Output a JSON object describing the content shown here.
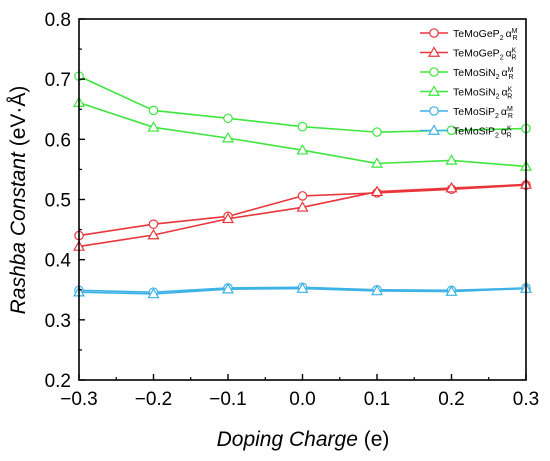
{
  "chart_data": {
    "type": "line",
    "xlabel_italic": "Doping Charge",
    "xlabel_unit": " (e)",
    "ylabel_italic": "Rashba Constant",
    "ylabel_unit": " (eV·Å)",
    "xlim": [
      -0.3,
      0.3
    ],
    "ylim": [
      0.2,
      0.8
    ],
    "x": [
      -0.3,
      -0.2,
      -0.1,
      0.0,
      0.1,
      0.2,
      0.3
    ],
    "x_tick_labels": [
      "−0.3",
      "−0.2",
      "−0.1",
      "0.0",
      "0.1",
      "0.2",
      "0.3"
    ],
    "y_ticks": [
      0.2,
      0.3,
      0.4,
      0.5,
      0.6,
      0.7,
      0.8
    ],
    "y_tick_labels": [
      "0.2",
      "0.3",
      "0.4",
      "0.5",
      "0.6",
      "0.7",
      "0.8"
    ],
    "grid": false,
    "legend_position": "top-right",
    "series": [
      {
        "base": "TeMoGeP",
        "sub": "2",
        "sym": "α",
        "sup": "M",
        "symsub": "R",
        "marker": "circle",
        "color": "#e8363a",
        "values": [
          0.44,
          0.459,
          0.472,
          0.506,
          0.511,
          0.517,
          0.524
        ]
      },
      {
        "base": "TeMoGeP",
        "sub": "2",
        "sym": "α",
        "sup": "K",
        "symsub": "R",
        "marker": "triangle",
        "color": "#e8363a",
        "values": [
          0.422,
          0.441,
          0.468,
          0.487,
          0.513,
          0.519,
          0.525
        ]
      },
      {
        "base": "TeMoSiN",
        "sub": "2",
        "sym": "α",
        "sup": "M",
        "symsub": "R",
        "marker": "circle",
        "color": "#3ee63e",
        "values": [
          0.705,
          0.648,
          0.635,
          0.621,
          0.612,
          0.615,
          0.618
        ]
      },
      {
        "base": "TeMoSiN",
        "sub": "2",
        "sym": "α",
        "sup": "K",
        "symsub": "R",
        "marker": "triangle",
        "color": "#3ee63e",
        "values": [
          0.661,
          0.62,
          0.602,
          0.582,
          0.56,
          0.565,
          0.555
        ]
      },
      {
        "base": "TeMoSiP",
        "sub": "2",
        "sym": "α",
        "sup": "M",
        "symsub": "R",
        "marker": "circle",
        "color": "#3db2e6",
        "values": [
          0.349,
          0.346,
          0.353,
          0.354,
          0.35,
          0.349,
          0.353
        ]
      },
      {
        "base": "TeMoSiP",
        "sub": "2",
        "sym": "α",
        "sup": "K",
        "symsub": "R",
        "marker": "triangle",
        "color": "#3db2e6",
        "values": [
          0.346,
          0.343,
          0.351,
          0.352,
          0.348,
          0.347,
          0.352
        ]
      }
    ]
  }
}
